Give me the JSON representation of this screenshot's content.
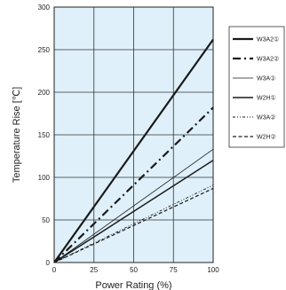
{
  "chart_data": {
    "type": "line",
    "title": "",
    "xlabel": "Power Rating (%)",
    "ylabel": "Temperature Rise [℃]",
    "xlim": [
      0,
      100
    ],
    "ylim": [
      0,
      300
    ],
    "x_ticks": [
      "0",
      "25",
      "50",
      "75",
      "100"
    ],
    "y_ticks": [
      "0",
      "50",
      "100",
      "150",
      "200",
      "250",
      "300"
    ],
    "grid": true,
    "legend_position": "right",
    "plot_background": "#dff0fa",
    "series": [
      {
        "name": "W3A2①",
        "style": "solid-thick",
        "color": "#1a1a1a",
        "x": [
          0,
          100
        ],
        "y": [
          0,
          262
        ]
      },
      {
        "name": "W3A2②",
        "style": "dash-dot-thick",
        "color": "#1a1a1a",
        "x": [
          0,
          100
        ],
        "y": [
          0,
          182
        ]
      },
      {
        "name": "W3A①",
        "style": "solid-thin",
        "color": "#1a1a1a",
        "x": [
          0,
          100
        ],
        "y": [
          0,
          133
        ]
      },
      {
        "name": "W2H①",
        "style": "solid-medium",
        "color": "#1a1a1a",
        "x": [
          0,
          100
        ],
        "y": [
          0,
          120
        ]
      },
      {
        "name": "W3A②",
        "style": "dash-dot-thin",
        "color": "#1a1a1a",
        "x": [
          0,
          100
        ],
        "y": [
          0,
          91
        ]
      },
      {
        "name": "W2H②",
        "style": "dashed",
        "color": "#1a1a1a",
        "x": [
          0,
          100
        ],
        "y": [
          0,
          87
        ]
      }
    ]
  }
}
